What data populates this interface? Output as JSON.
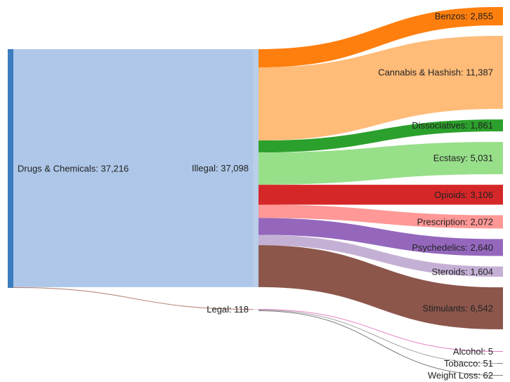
{
  "chart_data": {
    "type": "sankey",
    "title": "",
    "nodes": [
      {
        "id": "drugs",
        "label": "Drugs & Chemicals",
        "value": 37216,
        "color": "#3b7dbf"
      },
      {
        "id": "illegal",
        "label": "Illegal",
        "value": 37098,
        "color": "#aec7e8"
      },
      {
        "id": "legal",
        "label": "Legal",
        "value": 118,
        "color": "#d9d9d9"
      },
      {
        "id": "benzos",
        "label": "Benzos",
        "value": 2855,
        "color": "#ff7f0e"
      },
      {
        "id": "cannabis",
        "label": "Cannabis & Hashish",
        "value": 11387,
        "color": "#ffbb78"
      },
      {
        "id": "dissociatives",
        "label": "Dissociatives",
        "value": 1861,
        "color": "#2ca02c"
      },
      {
        "id": "ecstasy",
        "label": "Ecstasy",
        "value": 5031,
        "color": "#98df8a"
      },
      {
        "id": "opioids",
        "label": "Opioids",
        "value": 3106,
        "color": "#d62728"
      },
      {
        "id": "prescription",
        "label": "Prescription",
        "value": 2072,
        "color": "#ff9896"
      },
      {
        "id": "psychedelics",
        "label": "Psychedelics",
        "value": 2640,
        "color": "#9467bd"
      },
      {
        "id": "steroids",
        "label": "Steroids",
        "value": 1604,
        "color": "#c5b0d5"
      },
      {
        "id": "stimulants",
        "label": "Stimulants",
        "value": 6542,
        "color": "#8c564b"
      },
      {
        "id": "alcohol",
        "label": "Alcohol",
        "value": 5,
        "color": "#e377c2"
      },
      {
        "id": "tobacco",
        "label": "Tobacco",
        "value": 51,
        "color": "#7f7f7f"
      },
      {
        "id": "weightloss",
        "label": "Weight Loss",
        "value": 62,
        "color": "#7f7f7f"
      }
    ],
    "links": [
      {
        "source": "drugs",
        "target": "illegal",
        "value": 37098
      },
      {
        "source": "drugs",
        "target": "legal",
        "value": 118
      },
      {
        "source": "illegal",
        "target": "benzos",
        "value": 2855
      },
      {
        "source": "illegal",
        "target": "cannabis",
        "value": 11387
      },
      {
        "source": "illegal",
        "target": "dissociatives",
        "value": 1861
      },
      {
        "source": "illegal",
        "target": "ecstasy",
        "value": 5031
      },
      {
        "source": "illegal",
        "target": "opioids",
        "value": 3106
      },
      {
        "source": "illegal",
        "target": "prescription",
        "value": 2072
      },
      {
        "source": "illegal",
        "target": "psychedelics",
        "value": 2640
      },
      {
        "source": "illegal",
        "target": "steroids",
        "value": 1604
      },
      {
        "source": "illegal",
        "target": "stimulants",
        "value": 6542
      },
      {
        "source": "legal",
        "target": "alcohol",
        "value": 5
      },
      {
        "source": "legal",
        "target": "tobacco",
        "value": 51
      },
      {
        "source": "legal",
        "target": "weightloss",
        "value": 62
      }
    ]
  }
}
